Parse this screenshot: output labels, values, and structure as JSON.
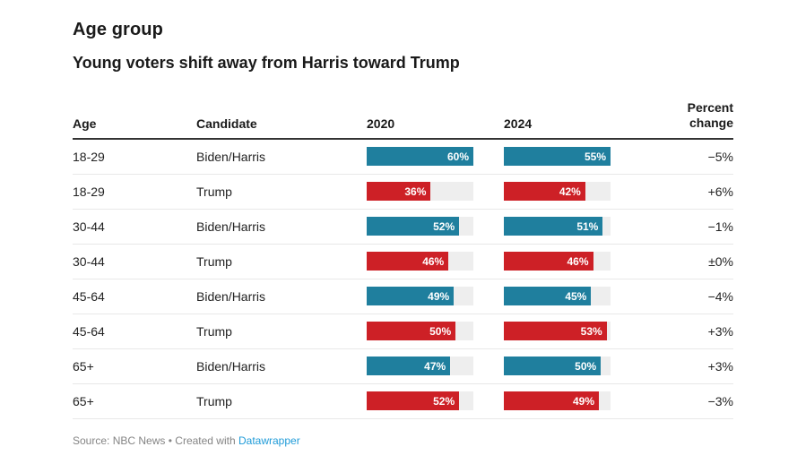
{
  "title": "Age group",
  "subtitle": "Young voters shift away from Harris toward Trump",
  "table": {
    "columns": {
      "age": "Age",
      "candidate": "Candidate",
      "y2020": "2020",
      "y2024": "2024",
      "change": "Percent change"
    },
    "rows": [
      {
        "age": "18-29",
        "candidate": "Biden/Harris",
        "v2020": 60,
        "v2024": 55,
        "change": "−5%"
      },
      {
        "age": "18-29",
        "candidate": "Trump",
        "v2020": 36,
        "v2024": 42,
        "change": "+6%"
      },
      {
        "age": "30-44",
        "candidate": "Biden/Harris",
        "v2020": 52,
        "v2024": 51,
        "change": "−1%"
      },
      {
        "age": "30-44",
        "candidate": "Trump",
        "v2020": 46,
        "v2024": 46,
        "change": "±0%"
      },
      {
        "age": "45-64",
        "candidate": "Biden/Harris",
        "v2020": 49,
        "v2024": 45,
        "change": "−4%"
      },
      {
        "age": "45-64",
        "candidate": "Trump",
        "v2020": 50,
        "v2024": 53,
        "change": "+3%"
      },
      {
        "age": "65+",
        "candidate": "Biden/Harris",
        "v2020": 47,
        "v2024": 50,
        "change": "+3%"
      },
      {
        "age": "65+",
        "candidate": "Trump",
        "v2020": 52,
        "v2024": 49,
        "change": "−3%"
      }
    ]
  },
  "chart_data": {
    "type": "table",
    "title": "Age group",
    "subtitle": "Young voters shift away from Harris toward Trump",
    "columns": [
      "Age",
      "Candidate",
      "2020",
      "2024",
      "Percent change"
    ],
    "rows": [
      [
        "18-29",
        "Biden/Harris",
        60,
        55,
        "−5%"
      ],
      [
        "18-29",
        "Trump",
        36,
        42,
        "+6%"
      ],
      [
        "30-44",
        "Biden/Harris",
        52,
        51,
        "−1%"
      ],
      [
        "30-44",
        "Trump",
        46,
        46,
        "±0%"
      ],
      [
        "45-64",
        "Biden/Harris",
        49,
        45,
        "−4%"
      ],
      [
        "45-64",
        "Trump",
        50,
        53,
        "+3%"
      ],
      [
        "65+",
        "Biden/Harris",
        47,
        50,
        "+3%"
      ],
      [
        "65+",
        "Trump",
        52,
        49,
        "−3%"
      ]
    ],
    "bar_columns": [
      "2020",
      "2024"
    ],
    "bar_scale": {
      "max_2020": 60,
      "max_2024": 55
    },
    "units": "%",
    "source": "NBC News"
  },
  "colors": {
    "biden_bar": "#1f7f9e",
    "trump_bar": "#cd2026",
    "bar_track": "#eeeeee",
    "header_rule": "#333333",
    "link_blue": "#1f9bd8"
  },
  "footer": {
    "source_label": "Source:",
    "source": "NBC News",
    "separator": "•",
    "credit": "Created with",
    "credit_link": "Datawrapper"
  }
}
